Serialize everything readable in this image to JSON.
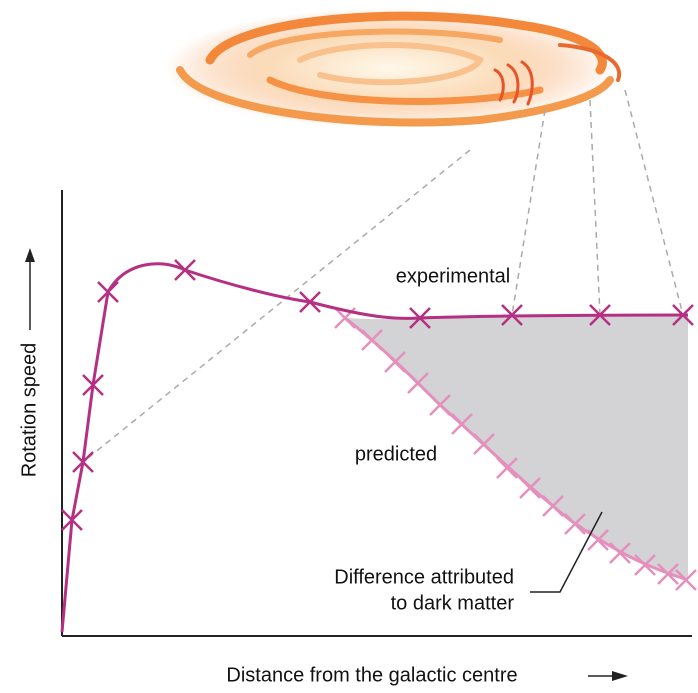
{
  "diagram": {
    "curves": {
      "experimental": "experimental",
      "predicted": "predicted"
    },
    "annotation": [
      "Difference attributed",
      "to dark matter"
    ],
    "axes": {
      "y_label": "Rotation speed",
      "x_label": "Distance from the galactic centre"
    }
  }
}
